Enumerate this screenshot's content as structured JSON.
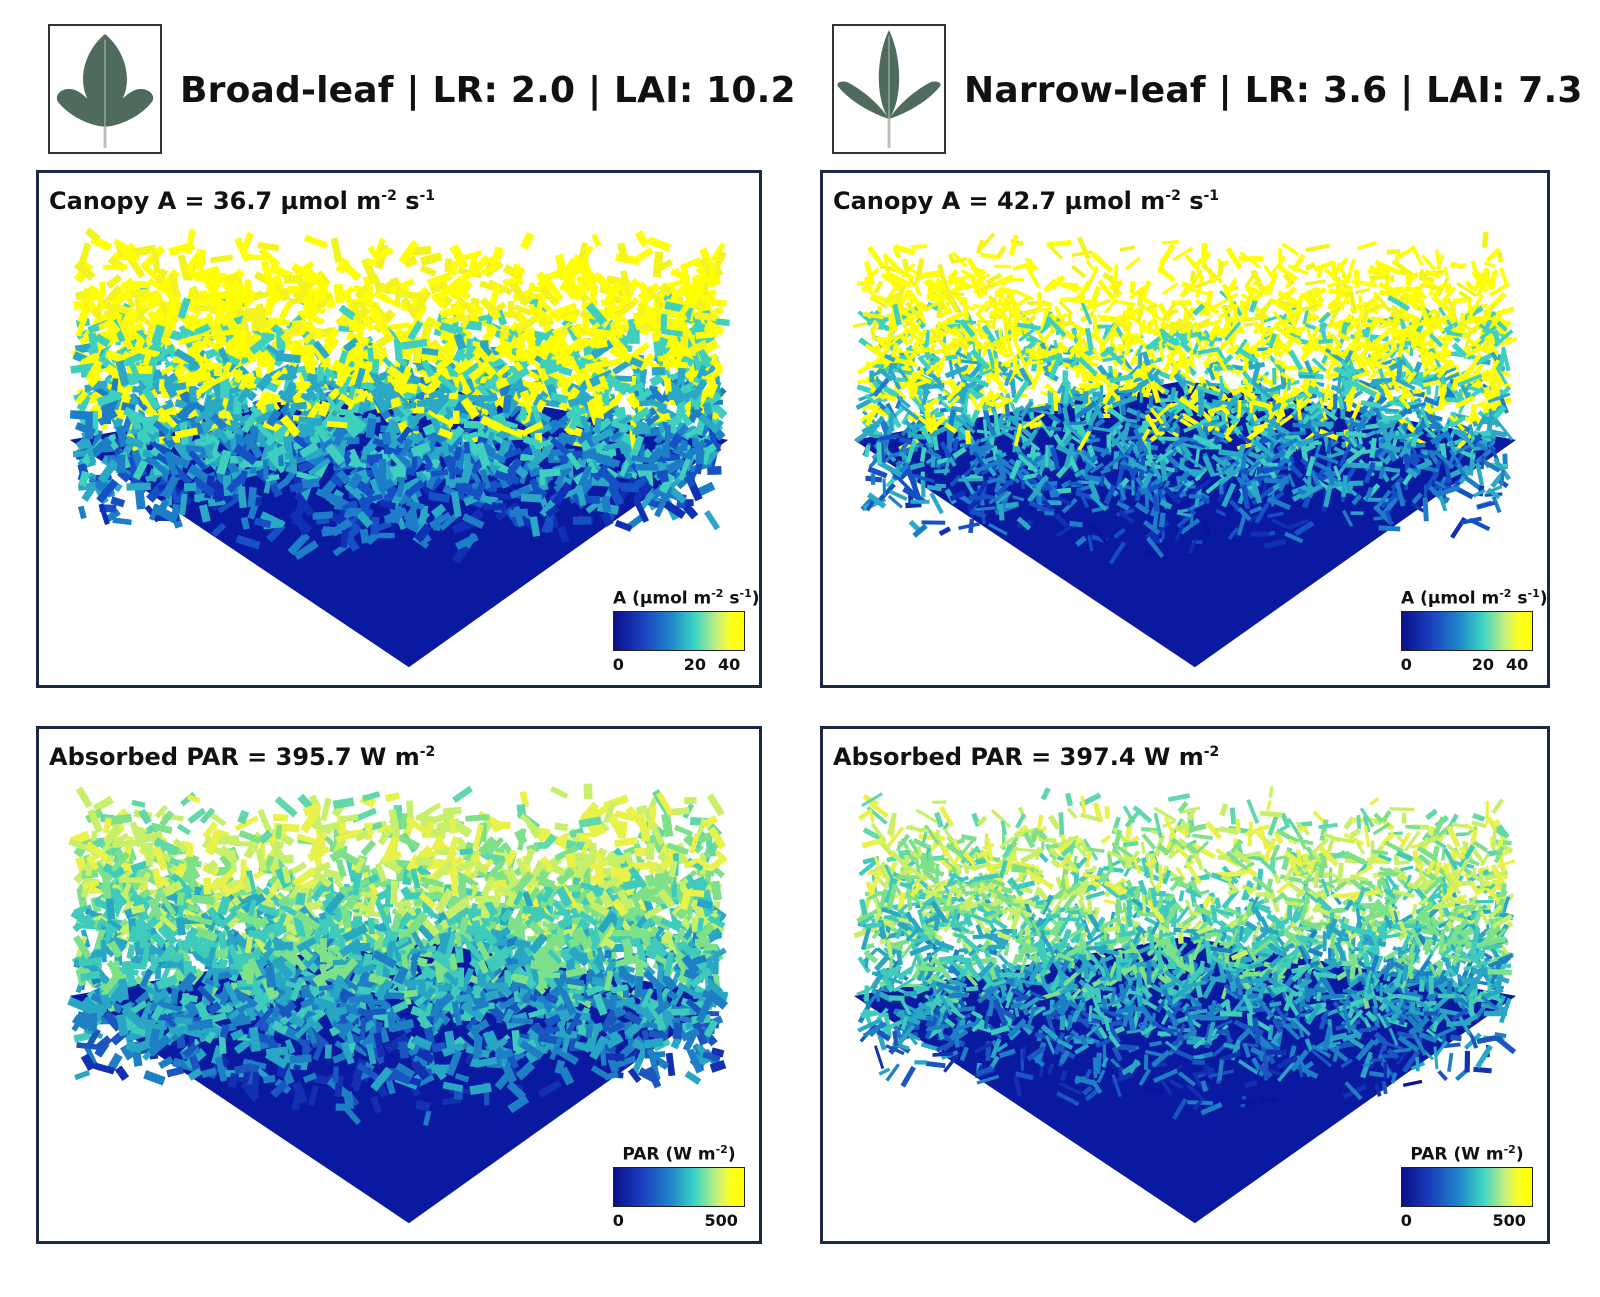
{
  "columns": [
    {
      "header_title": "Broad-leaf | LR: 2.0 | LAI: 10.2",
      "leaf_icon": "soybean-broad-leaf-icon",
      "panels": [
        {
          "title_prefix": "Canopy A = 36.7 µmol m",
          "title_mid": " s",
          "sup1": "-2",
          "sup2": "-1",
          "colorbar": {
            "label_prefix": "A (µmol m",
            "label_mid": " s",
            "label_suffix": ")",
            "sup1": "-2",
            "sup2": "-1",
            "ticks": [
              "0",
              "20",
              "40"
            ]
          },
          "metric": "A",
          "dense_top": true
        },
        {
          "title_prefix": "Absorbed PAR = 395.7 W m",
          "title_mid": "",
          "sup1": "-2",
          "sup2": "",
          "colorbar": {
            "label_prefix": "PAR (W m",
            "label_mid": "",
            "label_suffix": ")",
            "sup1": "-2",
            "sup2": "",
            "ticks": [
              "0",
              "500"
            ]
          },
          "metric": "PAR",
          "dense_top": true
        }
      ]
    },
    {
      "header_title": "Narrow-leaf | LR: 3.6 | LAI: 7.3",
      "leaf_icon": "soybean-narrow-leaf-icon",
      "panels": [
        {
          "title_prefix": "Canopy A = 42.7 µmol m",
          "title_mid": " s",
          "sup1": "-2",
          "sup2": "-1",
          "colorbar": {
            "label_prefix": "A (µmol m",
            "label_mid": " s",
            "label_suffix": ")",
            "sup1": "-2",
            "sup2": "-1",
            "ticks": [
              "0",
              "20",
              "40"
            ]
          },
          "metric": "A",
          "dense_top": false
        },
        {
          "title_prefix": "Absorbed PAR = 397.4 W m",
          "title_mid": "",
          "sup1": "-2",
          "sup2": "",
          "colorbar": {
            "label_prefix": "PAR (W m",
            "label_mid": "",
            "label_suffix": ")",
            "sup1": "-2",
            "sup2": "",
            "ticks": [
              "0",
              "500"
            ]
          },
          "metric": "PAR",
          "dense_top": false
        }
      ]
    }
  ],
  "colors": {
    "panel_border": "#1b2a44",
    "ground": "#0a1aa0",
    "high": "#ffff00"
  }
}
